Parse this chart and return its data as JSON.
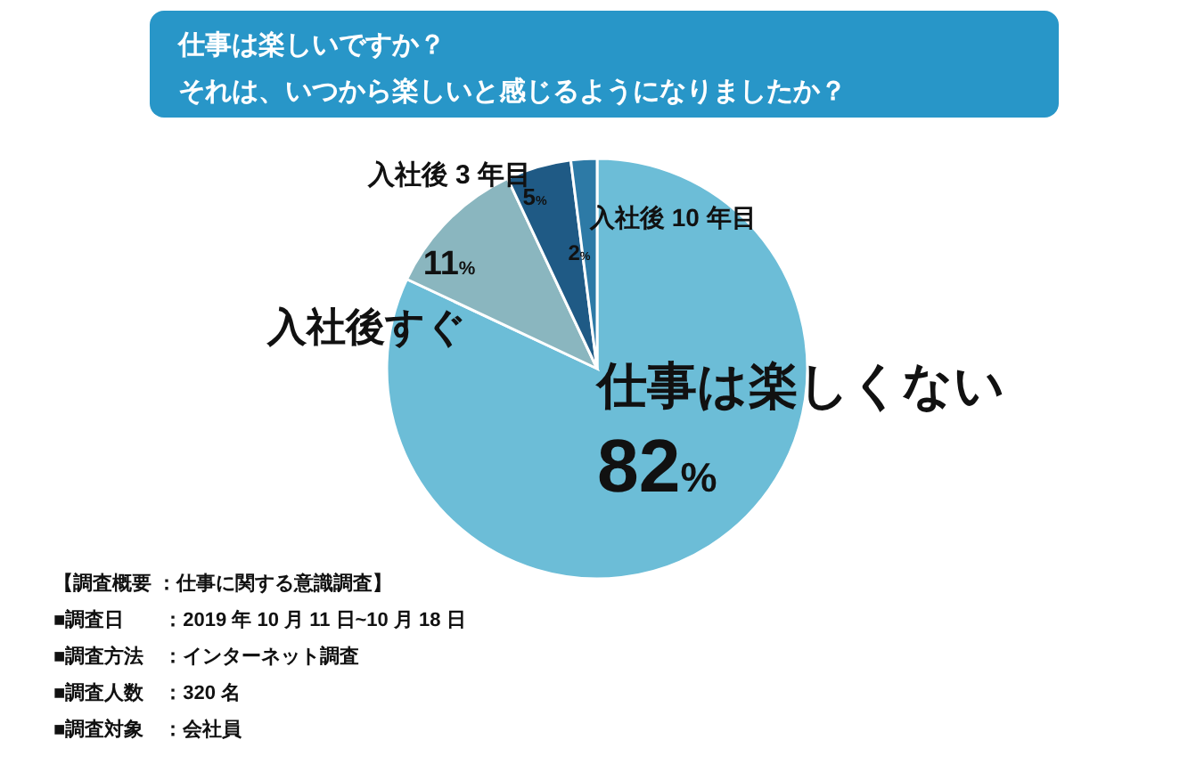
{
  "chart_data": {
    "type": "pie",
    "title": "仕事は楽しいですか？",
    "subtitle": "それは、いつから楽しいと感じるようになりましたか？",
    "categories": [
      "仕事は楽しくない",
      "入社後すぐ",
      "入社後 3 年目",
      "入社後 10 年目"
    ],
    "values": [
      82,
      11,
      5,
      2
    ],
    "value_labels": [
      "82%",
      "11%",
      "5%",
      "2%"
    ],
    "colors": [
      "#6cbdd7",
      "#8ab6bf",
      "#1f5a85",
      "#2d7aa6"
    ],
    "annotations": [
      "【調査概要 ：仕事に関する意識調査】",
      "■調査日　　：2019 年 10 月 11 日~10 月 18 日",
      "■調査方法　：インターネット調査",
      "■調査人数　：320 名",
      "■調査対象　：会社員"
    ]
  }
}
